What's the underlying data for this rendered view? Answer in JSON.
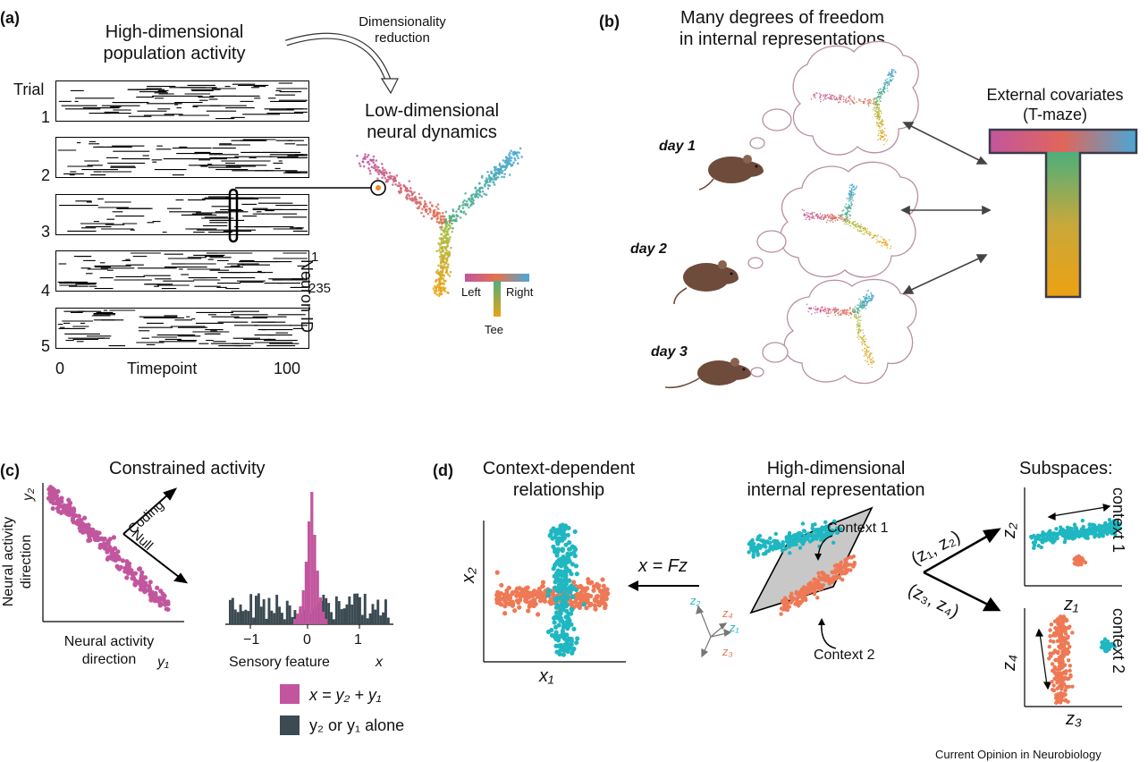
{
  "panel_a": {
    "letter": "(a)",
    "title_line1": "High-dimensional",
    "title_line2": "population activity",
    "arrow_label_line1": "Dimensionality",
    "arrow_label_line2": "reduction",
    "trial_label": "Trial",
    "trials": [
      "1",
      "2",
      "3",
      "4",
      "5"
    ],
    "x_tick_start": "0",
    "x_axis_label": "Timepoint",
    "x_tick_end": "100",
    "neuron_first": "1",
    "neuron_last": "235",
    "neuron_axis_label": "Neuron ID",
    "manifold_title_line1": "Low-dimensional",
    "manifold_title_line2": "neural dynamics",
    "tmaze_left": "Left",
    "tmaze_right": "Right",
    "tmaze_tee": "Tee"
  },
  "panel_b": {
    "letter": "(b)",
    "title_line1": "Many degrees of freedom",
    "title_line2": "in internal representations",
    "days": [
      "day 1",
      "day 2",
      "day 3"
    ],
    "covariates_line1": "External covariates",
    "covariates_line2": "(T-maze)"
  },
  "panel_c": {
    "letter": "(c)",
    "title": "Constrained activity",
    "y_label_line1": "Neural activity",
    "y_label_line2": "direction",
    "y_var": "y₂",
    "x_label_line1": "Neural activity",
    "x_label_line2": "direction",
    "x_var": "y₁",
    "coding_label": "Coding",
    "null_label": "Null",
    "hist_ticks": [
      "−1",
      "0",
      "1"
    ],
    "hist_xlabel": "Sensory feature",
    "hist_xvar": "x",
    "legend_combined": "x = y₂ + y₁",
    "legend_alone": "y₂ or y₁ alone"
  },
  "panel_d": {
    "letter": "(d)",
    "title_left_line1": "Context-dependent",
    "title_left_line2": "relationship",
    "title_mid_line1": "High-dimensional",
    "title_mid_line2": "internal representation",
    "title_right": "Subspaces:",
    "x2_label": "x₂",
    "x1_label": "x₁",
    "mapping_label": "x = Fz",
    "context1_label": "Context 1",
    "context2_label": "Context 2",
    "z_axes": [
      "z₂",
      "z₄",
      "z₁",
      "z₃"
    ],
    "pair12": "(z₁, z₂)",
    "pair34": "(z₃, z₄)",
    "sub1_y": "z₂",
    "sub1_x": "z₁",
    "sub1_side": "context 1",
    "sub2_y": "z₄",
    "sub2_x": "z₃",
    "sub2_side": "context 2"
  },
  "footer": {
    "journal": "Current Opinion in Neurobiology"
  },
  "colors": {
    "magenta": "#c2569e",
    "teal": "#1fb7c1",
    "orange": "#ee7955",
    "dark_gray": "#3c4a52",
    "light_gray": "#c8c8c8",
    "mouse_brown": "#6e4b3a",
    "cloud_stroke": "#b78fa6"
  }
}
